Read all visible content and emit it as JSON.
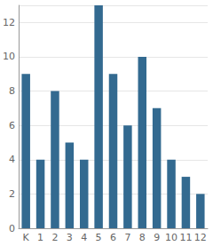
{
  "chart_data": {
    "type": "bar",
    "categories": [
      "K",
      "1",
      "2",
      "3",
      "4",
      "5",
      "6",
      "7",
      "8",
      "9",
      "10",
      "11",
      "12"
    ],
    "values": [
      9,
      4,
      8,
      5,
      4,
      13,
      9,
      6,
      10,
      7,
      4,
      3,
      2
    ],
    "color": "#336a90",
    "ylim": [
      0,
      13
    ],
    "yticks": [
      0,
      2,
      4,
      6,
      8,
      10,
      12
    ],
    "grid": true
  }
}
